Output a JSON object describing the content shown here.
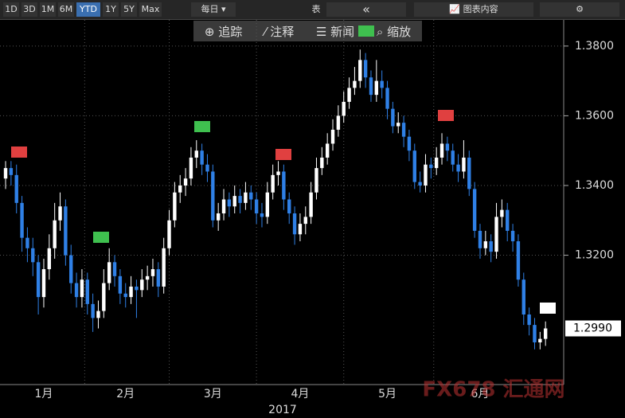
{
  "toolbar": {
    "ranges": [
      "1D",
      "3D",
      "1M",
      "6M",
      "YTD",
      "1Y",
      "5Y",
      "Max"
    ],
    "frequency": "每日",
    "table": "表",
    "chart_content": "图表内容"
  },
  "tools": [
    "追踪",
    "注释",
    "新闻",
    "缩放"
  ],
  "watermark": "FX678 汇通网",
  "chart_data": {
    "type": "candlestick",
    "xlabel": "2017",
    "categories": [
      null,
      null,
      null,
      null,
      null,
      null,
      null,
      "1月",
      null,
      null,
      null,
      null,
      null,
      null,
      null,
      null,
      null,
      null,
      null,
      null,
      null,
      null,
      "2月",
      null,
      null,
      null,
      null,
      null,
      null,
      null,
      null,
      null,
      null,
      null,
      null,
      null,
      null,
      null,
      "3月",
      null,
      null,
      null,
      null,
      null,
      null,
      null,
      null,
      null,
      null,
      null,
      null,
      null,
      null,
      null,
      "4月",
      null,
      null,
      null,
      null,
      null,
      null,
      null,
      null,
      null,
      null,
      null,
      null,
      null,
      null,
      null,
      "5月",
      null,
      null,
      null,
      null,
      null,
      null,
      null,
      null,
      null,
      null,
      null,
      null,
      null,
      null,
      null,
      null,
      "6月",
      null,
      null,
      null,
      null,
      null,
      null,
      null,
      null,
      null,
      null,
      null,
      null
    ],
    "open": [
      1.342,
      1.345,
      1.343,
      1.335,
      1.325,
      1.322,
      1.318,
      1.308,
      1.316,
      1.322,
      1.33,
      1.334,
      1.32,
      1.312,
      1.308,
      1.313,
      1.306,
      1.302,
      1.304,
      1.312,
      1.318,
      1.314,
      1.309,
      1.308,
      1.311,
      1.31,
      1.313,
      1.314,
      1.316,
      1.311,
      1.322,
      1.33,
      1.338,
      1.34,
      1.342,
      1.348,
      1.35,
      1.346,
      1.344,
      1.33,
      1.332,
      1.336,
      1.334,
      1.337,
      1.335,
      1.338,
      1.336,
      1.332,
      1.331,
      1.338,
      1.343,
      1.344,
      1.336,
      1.332,
      1.326,
      1.329,
      1.331,
      1.338,
      1.345,
      1.348,
      1.352,
      1.356,
      1.36,
      1.364,
      1.368,
      1.37,
      1.376,
      1.371,
      1.366,
      1.37,
      1.368,
      1.362,
      1.357,
      1.358,
      1.354,
      1.35,
      1.341,
      1.34,
      1.346,
      1.345,
      1.348,
      1.352,
      1.35,
      1.346,
      1.344,
      1.348,
      1.339,
      1.327,
      1.322,
      1.324,
      1.321,
      1.331,
      1.333,
      1.327,
      1.324,
      1.313,
      1.303,
      1.3,
      1.295,
      1.296
    ],
    "high": [
      1.347,
      1.347,
      1.346,
      1.337,
      1.328,
      1.325,
      1.32,
      1.319,
      1.326,
      1.335,
      1.338,
      1.336,
      1.323,
      1.315,
      1.316,
      1.315,
      1.309,
      1.307,
      1.316,
      1.322,
      1.32,
      1.316,
      1.312,
      1.314,
      1.313,
      1.316,
      1.317,
      1.319,
      1.318,
      1.325,
      1.333,
      1.341,
      1.343,
      1.345,
      1.351,
      1.353,
      1.352,
      1.349,
      1.346,
      1.335,
      1.339,
      1.338,
      1.34,
      1.339,
      1.341,
      1.34,
      1.338,
      1.335,
      1.341,
      1.346,
      1.347,
      1.346,
      1.338,
      1.334,
      1.332,
      1.334,
      1.341,
      1.348,
      1.351,
      1.355,
      1.359,
      1.363,
      1.367,
      1.371,
      1.374,
      1.379,
      1.378,
      1.373,
      1.376,
      1.373,
      1.37,
      1.364,
      1.361,
      1.36,
      1.356,
      1.352,
      1.344,
      1.349,
      1.348,
      1.351,
      1.355,
      1.354,
      1.352,
      1.349,
      1.353,
      1.35,
      1.341,
      1.329,
      1.327,
      1.326,
      1.335,
      1.336,
      1.335,
      1.329,
      1.326,
      1.315,
      1.305,
      1.302,
      1.298,
      1.301
    ],
    "low": [
      1.339,
      1.34,
      1.332,
      1.321,
      1.318,
      1.314,
      1.303,
      1.305,
      1.313,
      1.319,
      1.327,
      1.317,
      1.309,
      1.305,
      1.305,
      1.303,
      1.298,
      1.299,
      1.302,
      1.31,
      1.311,
      1.306,
      1.305,
      1.306,
      1.302,
      1.308,
      1.31,
      1.311,
      1.308,
      1.309,
      1.32,
      1.328,
      1.335,
      1.337,
      1.34,
      1.345,
      1.343,
      1.341,
      1.328,
      1.327,
      1.33,
      1.331,
      1.332,
      1.332,
      1.333,
      1.333,
      1.329,
      1.328,
      1.329,
      1.336,
      1.34,
      1.333,
      1.329,
      1.323,
      1.324,
      1.326,
      1.329,
      1.336,
      1.343,
      1.346,
      1.35,
      1.354,
      1.358,
      1.362,
      1.366,
      1.368,
      1.368,
      1.364,
      1.364,
      1.365,
      1.359,
      1.355,
      1.355,
      1.351,
      1.347,
      1.339,
      1.338,
      1.338,
      1.342,
      1.343,
      1.346,
      1.347,
      1.344,
      1.341,
      1.342,
      1.337,
      1.325,
      1.319,
      1.32,
      1.318,
      1.319,
      1.328,
      1.324,
      1.321,
      1.311,
      1.3,
      1.297,
      1.293,
      1.293,
      1.294
    ],
    "close": [
      1.345,
      1.343,
      1.335,
      1.325,
      1.322,
      1.318,
      1.308,
      1.316,
      1.322,
      1.33,
      1.334,
      1.32,
      1.312,
      1.308,
      1.313,
      1.306,
      1.302,
      1.304,
      1.312,
      1.318,
      1.314,
      1.309,
      1.308,
      1.311,
      1.31,
      1.313,
      1.314,
      1.316,
      1.311,
      1.322,
      1.33,
      1.338,
      1.34,
      1.342,
      1.348,
      1.35,
      1.346,
      1.344,
      1.33,
      1.332,
      1.336,
      1.334,
      1.337,
      1.335,
      1.338,
      1.336,
      1.332,
      1.331,
      1.338,
      1.343,
      1.344,
      1.336,
      1.332,
      1.326,
      1.329,
      1.331,
      1.338,
      1.345,
      1.348,
      1.352,
      1.356,
      1.36,
      1.364,
      1.368,
      1.37,
      1.376,
      1.371,
      1.366,
      1.37,
      1.368,
      1.362,
      1.357,
      1.358,
      1.354,
      1.35,
      1.341,
      1.34,
      1.346,
      1.345,
      1.348,
      1.352,
      1.35,
      1.346,
      1.344,
      1.348,
      1.339,
      1.327,
      1.322,
      1.324,
      1.321,
      1.331,
      1.333,
      1.327,
      1.324,
      1.313,
      1.303,
      1.3,
      1.295,
      1.296,
      1.299
    ],
    "up_color": "#ffffff",
    "down_color": "#2f80e6",
    "ylim": [
      1.2829,
      1.3875
    ],
    "yticks": [
      {
        "value": 1.38,
        "label": "1.3800"
      },
      {
        "value": 1.36,
        "label": "1.3600"
      },
      {
        "value": 1.34,
        "label": "1.3400"
      },
      {
        "value": 1.32,
        "label": "1.3200"
      }
    ],
    "last_price": {
      "value": 1.299,
      "label": "1.2990"
    },
    "grid": true
  }
}
